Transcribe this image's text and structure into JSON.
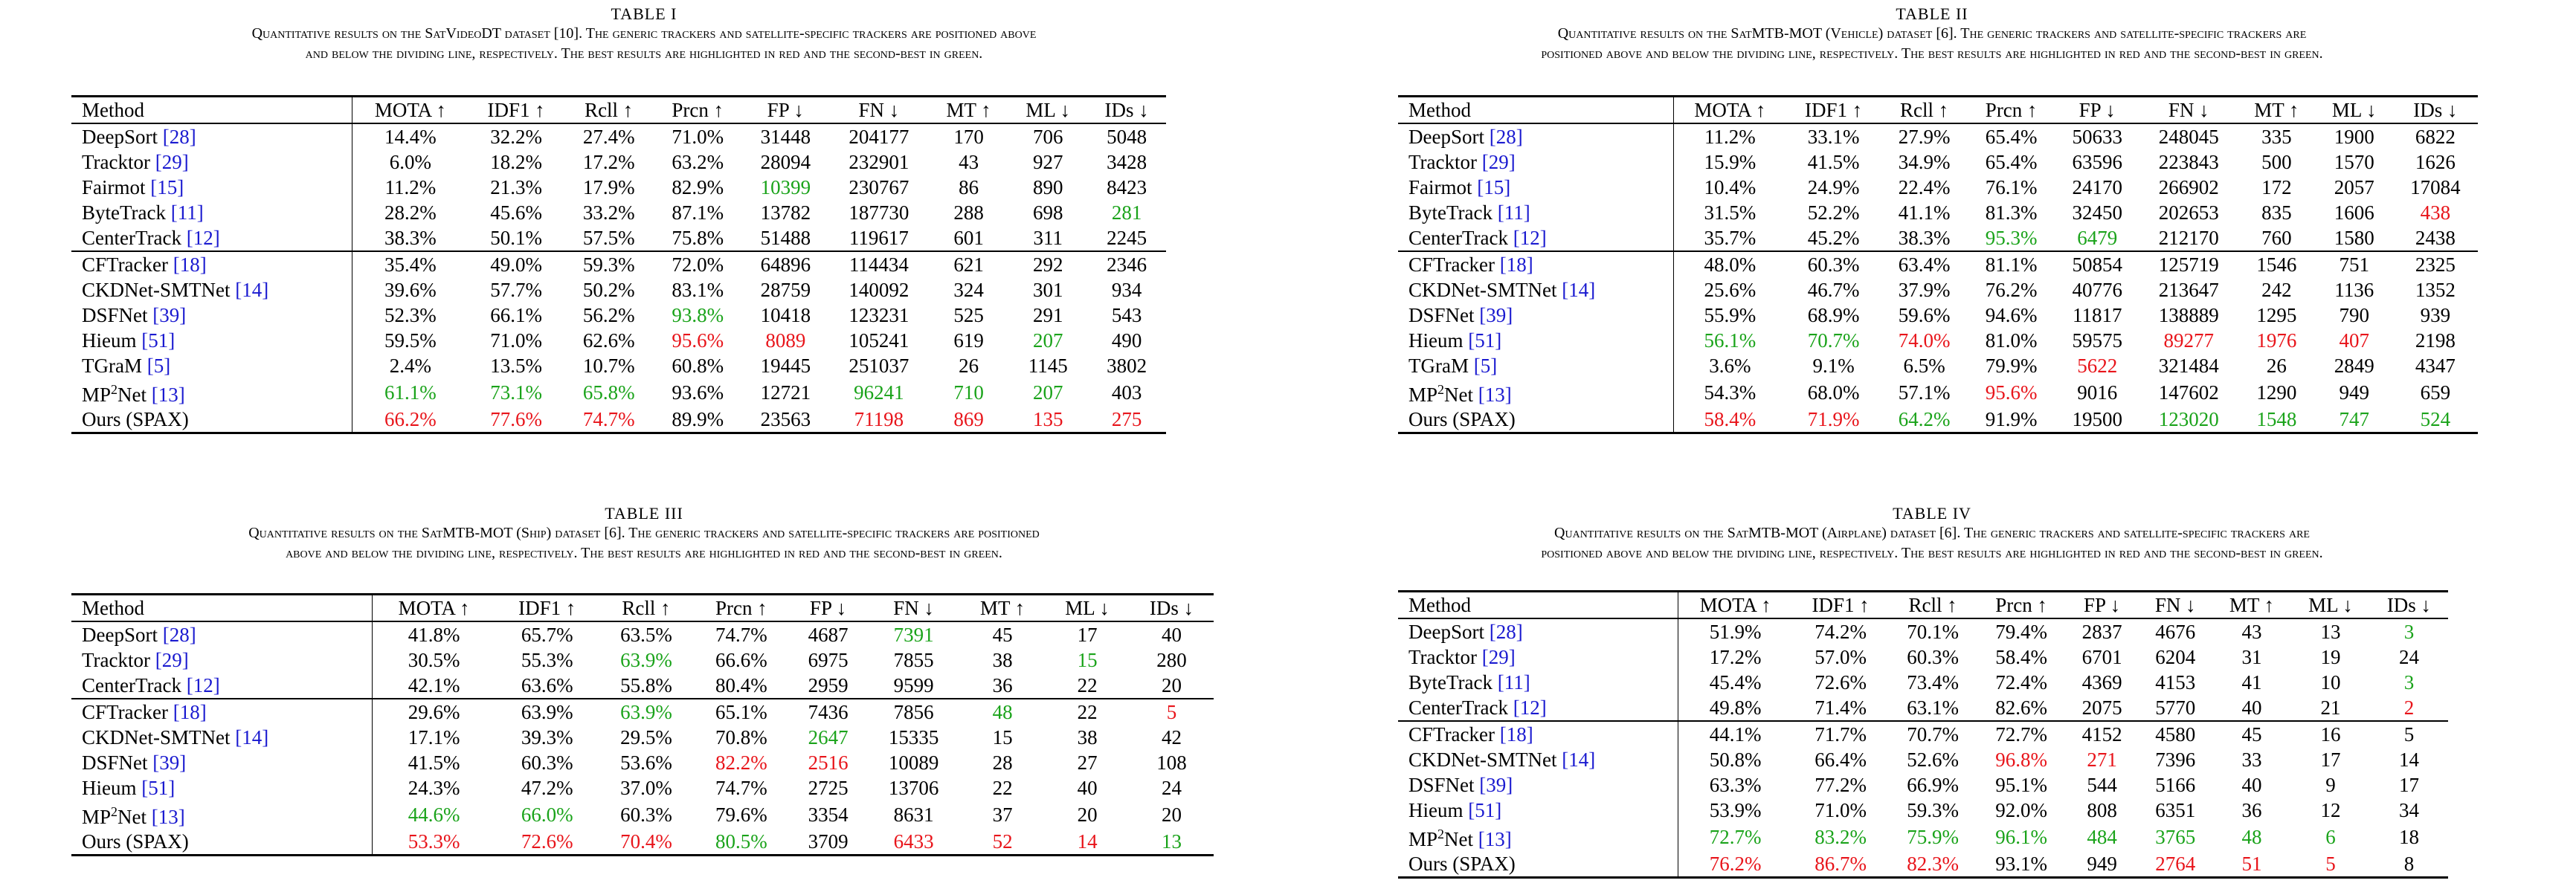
{
  "tables": [
    {
      "title": "TABLE I",
      "caption": [
        "Quantitative results on the SatVideoDT dataset [10]. The generic trackers and satellite-specific trackers are positioned above",
        "and below the dividing line, respectively. The best results are highlighted in red and the second-best in green."
      ],
      "headers": [
        "Method",
        "MOTA ↑",
        "IDF1 ↑",
        "Rcll ↑",
        "Prcn ↑",
        "FP ↓",
        "FN ↓",
        "MT ↑",
        "ML ↓",
        "IDs ↓"
      ],
      "rows": [
        {
          "name": "DeepSort",
          "cite": "[28]",
          "v": [
            "14.4%",
            "32.2%",
            "27.4%",
            "71.0%",
            "31448",
            "204177",
            "170",
            "706",
            "5048"
          ]
        },
        {
          "name": "Tracktor",
          "cite": "[29]",
          "v": [
            "6.0%",
            "18.2%",
            "17.2%",
            "63.2%",
            "28094",
            "232901",
            "43",
            "927",
            "3428"
          ]
        },
        {
          "name": "Fairmot",
          "cite": "[15]",
          "v": [
            "11.2%",
            "21.3%",
            "17.9%",
            "82.9%",
            "10399",
            "230767",
            "86",
            "890",
            "8423"
          ],
          "c": {
            "4": "green"
          }
        },
        {
          "name": "ByteTrack",
          "cite": "[11]",
          "v": [
            "28.2%",
            "45.6%",
            "33.2%",
            "87.1%",
            "13782",
            "187730",
            "288",
            "698",
            "281"
          ],
          "c": {
            "8": "green"
          }
        },
        {
          "name": "CenterTrack",
          "cite": "[12]",
          "v": [
            "38.3%",
            "50.1%",
            "57.5%",
            "75.8%",
            "51488",
            "119617",
            "601",
            "311",
            "2245"
          ]
        },
        {
          "name": "CFTracker",
          "cite": "[18]",
          "sep": true,
          "v": [
            "35.4%",
            "49.0%",
            "59.3%",
            "72.0%",
            "64896",
            "114434",
            "621",
            "292",
            "2346"
          ]
        },
        {
          "name": "CKDNet-SMTNet",
          "cite": "[14]",
          "v": [
            "39.6%",
            "57.7%",
            "50.2%",
            "83.1%",
            "28759",
            "140092",
            "324",
            "301",
            "934"
          ]
        },
        {
          "name": "DSFNet",
          "cite": "[39]",
          "v": [
            "52.3%",
            "66.1%",
            "56.2%",
            "93.8%",
            "10418",
            "123231",
            "525",
            "291",
            "543"
          ],
          "c": {
            "3": "green"
          }
        },
        {
          "name": "Hieum",
          "cite": "[51]",
          "v": [
            "59.5%",
            "71.0%",
            "62.6%",
            "95.6%",
            "8089",
            "105241",
            "619",
            "207",
            "490"
          ],
          "c": {
            "3": "red",
            "4": "red",
            "7": "green"
          }
        },
        {
          "name": "TGraM",
          "cite": "[5]",
          "v": [
            "2.4%",
            "13.5%",
            "10.7%",
            "60.8%",
            "19445",
            "251037",
            "26",
            "1145",
            "3802"
          ]
        },
        {
          "name": "MP",
          "sup": "2",
          "name2": "Net",
          "cite": "[13]",
          "v": [
            "61.1%",
            "73.1%",
            "65.8%",
            "93.6%",
            "12721",
            "96241",
            "710",
            "207",
            "403"
          ],
          "c": {
            "0": "green",
            "1": "green",
            "2": "green",
            "5": "green",
            "6": "green",
            "7": "green"
          }
        },
        {
          "name": "Ours (SPAX)",
          "cite": "",
          "v": [
            "66.2%",
            "77.6%",
            "74.7%",
            "89.9%",
            "23563",
            "71198",
            "869",
            "135",
            "275"
          ],
          "c": {
            "0": "red",
            "1": "red",
            "2": "red",
            "5": "red",
            "6": "red",
            "7": "red",
            "8": "red"
          }
        }
      ]
    },
    {
      "title": "TABLE II",
      "caption": [
        "Quantitative results on the SatMTB-MOT (Vehicle) dataset [6]. The generic trackers and satellite-specific trackers are",
        "positioned above and below the dividing line, respectively. The best results are highlighted in red and the second-best in green."
      ],
      "headers": [
        "Method",
        "MOTA ↑",
        "IDF1 ↑",
        "Rcll ↑",
        "Prcn ↑",
        "FP ↓",
        "FN ↓",
        "MT ↑",
        "ML ↓",
        "IDs ↓"
      ],
      "rows": [
        {
          "name": "DeepSort",
          "cite": "[28]",
          "v": [
            "11.2%",
            "33.1%",
            "27.9%",
            "65.4%",
            "50633",
            "248045",
            "335",
            "1900",
            "6822"
          ]
        },
        {
          "name": "Tracktor",
          "cite": "[29]",
          "v": [
            "15.9%",
            "41.5%",
            "34.9%",
            "65.4%",
            "63596",
            "223843",
            "500",
            "1570",
            "1626"
          ]
        },
        {
          "name": "Fairmot",
          "cite": "[15]",
          "v": [
            "10.4%",
            "24.9%",
            "22.4%",
            "76.1%",
            "24170",
            "266902",
            "172",
            "2057",
            "17084"
          ]
        },
        {
          "name": "ByteTrack",
          "cite": "[11]",
          "v": [
            "31.5%",
            "52.2%",
            "41.1%",
            "81.3%",
            "32450",
            "202653",
            "835",
            "1606",
            "438"
          ],
          "c": {
            "8": "red"
          }
        },
        {
          "name": "CenterTrack",
          "cite": "[12]",
          "v": [
            "35.7%",
            "45.2%",
            "38.3%",
            "95.3%",
            "6479",
            "212170",
            "760",
            "1580",
            "2438"
          ],
          "c": {
            "3": "green",
            "4": "green"
          }
        },
        {
          "name": "CFTracker",
          "cite": "[18]",
          "sep": true,
          "v": [
            "48.0%",
            "60.3%",
            "63.4%",
            "81.1%",
            "50854",
            "125719",
            "1546",
            "751",
            "2325"
          ]
        },
        {
          "name": "CKDNet-SMTNet",
          "cite": "[14]",
          "v": [
            "25.6%",
            "46.7%",
            "37.9%",
            "76.2%",
            "40776",
            "213647",
            "242",
            "1136",
            "1352"
          ]
        },
        {
          "name": "DSFNet",
          "cite": "[39]",
          "v": [
            "55.9%",
            "68.9%",
            "59.6%",
            "94.6%",
            "11817",
            "138889",
            "1295",
            "790",
            "939"
          ]
        },
        {
          "name": "Hieum",
          "cite": "[51]",
          "v": [
            "56.1%",
            "70.7%",
            "74.0%",
            "81.0%",
            "59575",
            "89277",
            "1976",
            "407",
            "2198"
          ],
          "c": {
            "0": "green",
            "1": "green",
            "2": "red",
            "5": "red",
            "6": "red",
            "7": "red"
          }
        },
        {
          "name": "TGraM",
          "cite": "[5]",
          "v": [
            "3.6%",
            "9.1%",
            "6.5%",
            "79.9%",
            "5622",
            "321484",
            "26",
            "2849",
            "4347"
          ],
          "c": {
            "4": "red"
          }
        },
        {
          "name": "MP",
          "sup": "2",
          "name2": "Net",
          "cite": "[13]",
          "v": [
            "54.3%",
            "68.0%",
            "57.1%",
            "95.6%",
            "9016",
            "147602",
            "1290",
            "949",
            "659"
          ],
          "c": {
            "3": "red"
          }
        },
        {
          "name": "Ours (SPAX)",
          "cite": "",
          "v": [
            "58.4%",
            "71.9%",
            "64.2%",
            "91.9%",
            "19500",
            "123020",
            "1548",
            "747",
            "524"
          ],
          "c": {
            "0": "red",
            "1": "red",
            "2": "green",
            "5": "green",
            "6": "green",
            "7": "green",
            "8": "green"
          }
        }
      ]
    },
    {
      "title": "TABLE III",
      "caption": [
        "Quantitative results on the SatMTB-MOT (Ship) dataset [6]. The generic trackers and satellite-specific trackers are positioned",
        "above and below the dividing line, respectively. The best results are highlighted in red and the second-best in green."
      ],
      "headers": [
        "Method",
        "MOTA ↑",
        "IDF1 ↑",
        "Rcll ↑",
        "Prcn ↑",
        "FP ↓",
        "FN ↓",
        "MT ↑",
        "ML ↓",
        "IDs ↓"
      ],
      "rows": [
        {
          "name": "DeepSort",
          "cite": "[28]",
          "v": [
            "41.8%",
            "65.7%",
            "63.5%",
            "74.7%",
            "4687",
            "7391",
            "45",
            "17",
            "40"
          ],
          "c": {
            "5": "green"
          }
        },
        {
          "name": "Tracktor",
          "cite": "[29]",
          "v": [
            "30.5%",
            "55.3%",
            "63.9%",
            "66.6%",
            "6975",
            "7855",
            "38",
            "15",
            "280"
          ],
          "c": {
            "2": "green",
            "7": "green"
          }
        },
        {
          "name": "CenterTrack",
          "cite": "[12]",
          "v": [
            "42.1%",
            "63.6%",
            "55.8%",
            "80.4%",
            "2959",
            "9599",
            "36",
            "22",
            "20"
          ]
        },
        {
          "name": "CFTracker",
          "cite": "[18]",
          "sep": true,
          "v": [
            "29.6%",
            "63.9%",
            "63.9%",
            "65.1%",
            "7436",
            "7856",
            "48",
            "22",
            "5"
          ],
          "c": {
            "2": "green",
            "6": "green",
            "8": "red"
          }
        },
        {
          "name": "CKDNet-SMTNet",
          "cite": "[14]",
          "v": [
            "17.1%",
            "39.3%",
            "29.5%",
            "70.8%",
            "2647",
            "15335",
            "15",
            "38",
            "42"
          ],
          "c": {
            "4": "green"
          }
        },
        {
          "name": "DSFNet",
          "cite": "[39]",
          "v": [
            "41.5%",
            "60.3%",
            "53.6%",
            "82.2%",
            "2516",
            "10089",
            "28",
            "27",
            "108"
          ],
          "c": {
            "3": "red",
            "4": "red"
          }
        },
        {
          "name": "Hieum",
          "cite": "[51]",
          "v": [
            "24.3%",
            "47.2%",
            "37.0%",
            "74.7%",
            "2725",
            "13706",
            "22",
            "40",
            "24"
          ]
        },
        {
          "name": "MP",
          "sup": "2",
          "name2": "Net",
          "cite": "[13]",
          "v": [
            "44.6%",
            "66.0%",
            "60.3%",
            "79.6%",
            "3354",
            "8631",
            "37",
            "20",
            "20"
          ],
          "c": {
            "0": "green",
            "1": "green"
          }
        },
        {
          "name": "Ours (SPAX)",
          "cite": "",
          "v": [
            "53.3%",
            "72.6%",
            "70.4%",
            "80.5%",
            "3709",
            "6433",
            "52",
            "14",
            "13"
          ],
          "c": {
            "0": "red",
            "1": "red",
            "2": "red",
            "3": "green",
            "5": "red",
            "6": "red",
            "7": "red",
            "8": "green"
          }
        }
      ]
    },
    {
      "title": "TABLE IV",
      "caption": [
        "Quantitative results on the SatMTB-MOT (Airplane) dataset [6]. The generic trackers and satellite-specific trackers are",
        "positioned above and below the dividing line, respectively. The best results are highlighted in red and the second-best in green."
      ],
      "headers": [
        "Method",
        "MOTA ↑",
        "IDF1 ↑",
        "Rcll ↑",
        "Prcn ↑",
        "FP ↓",
        "FN ↓",
        "MT ↑",
        "ML ↓",
        "IDs ↓"
      ],
      "rows": [
        {
          "name": "DeepSort",
          "cite": "[28]",
          "v": [
            "51.9%",
            "74.2%",
            "70.1%",
            "79.4%",
            "2837",
            "4676",
            "43",
            "13",
            "3"
          ],
          "c": {
            "8": "green"
          }
        },
        {
          "name": "Tracktor",
          "cite": "[29]",
          "v": [
            "17.2%",
            "57.0%",
            "60.3%",
            "58.4%",
            "6701",
            "6204",
            "31",
            "19",
            "24"
          ]
        },
        {
          "name": "ByteTrack",
          "cite": "[11]",
          "v": [
            "45.4%",
            "72.6%",
            "73.4%",
            "72.4%",
            "4369",
            "4153",
            "41",
            "10",
            "3"
          ],
          "c": {
            "8": "green"
          }
        },
        {
          "name": "CenterTrack",
          "cite": "[12]",
          "v": [
            "49.8%",
            "71.4%",
            "63.1%",
            "82.6%",
            "2075",
            "5770",
            "40",
            "21",
            "2"
          ],
          "c": {
            "8": "red"
          }
        },
        {
          "name": "CFTracker",
          "cite": "[18]",
          "sep": true,
          "v": [
            "44.1%",
            "71.7%",
            "70.7%",
            "72.7%",
            "4152",
            "4580",
            "45",
            "16",
            "5"
          ]
        },
        {
          "name": "CKDNet-SMTNet",
          "cite": "[14]",
          "v": [
            "50.8%",
            "66.4%",
            "52.6%",
            "96.8%",
            "271",
            "7396",
            "33",
            "17",
            "14"
          ],
          "c": {
            "3": "red",
            "4": "red"
          }
        },
        {
          "name": "DSFNet",
          "cite": "[39]",
          "v": [
            "63.3%",
            "77.2%",
            "66.9%",
            "95.1%",
            "544",
            "5166",
            "40",
            "9",
            "17"
          ]
        },
        {
          "name": "Hieum",
          "cite": "[51]",
          "v": [
            "53.9%",
            "71.0%",
            "59.3%",
            "92.0%",
            "808",
            "6351",
            "36",
            "12",
            "34"
          ]
        },
        {
          "name": "MP",
          "sup": "2",
          "name2": "Net",
          "cite": "[13]",
          "v": [
            "72.7%",
            "83.2%",
            "75.9%",
            "96.1%",
            "484",
            "3765",
            "48",
            "6",
            "18"
          ],
          "c": {
            "0": "green",
            "1": "green",
            "2": "green",
            "3": "green",
            "4": "green",
            "5": "green",
            "6": "green",
            "7": "green"
          }
        },
        {
          "name": "Ours (SPAX)",
          "cite": "",
          "v": [
            "76.2%",
            "86.7%",
            "82.3%",
            "93.1%",
            "949",
            "2764",
            "51",
            "5",
            "8"
          ],
          "c": {
            "0": "red",
            "1": "red",
            "2": "red",
            "5": "red",
            "6": "red",
            "7": "red"
          }
        }
      ]
    }
  ],
  "colors": {
    "best": "#e8141a",
    "second": "#1aa31a",
    "citation": "#1a1ad0"
  }
}
